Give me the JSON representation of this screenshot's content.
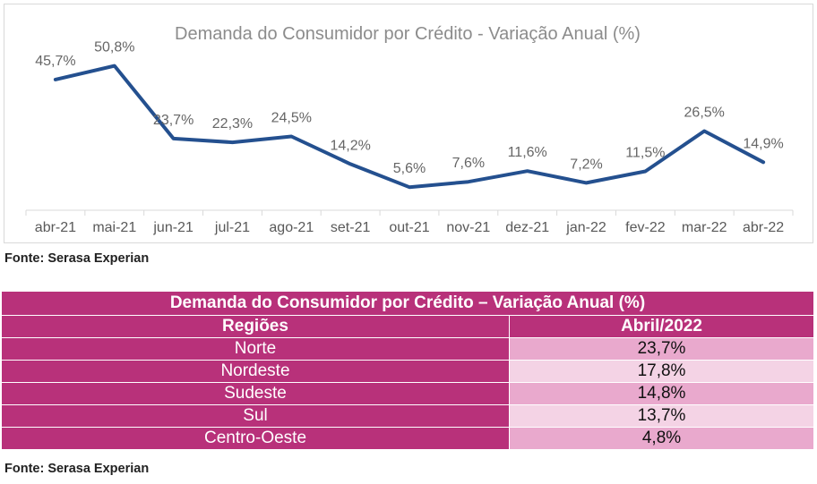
{
  "chart_data": {
    "type": "line",
    "title": "Demanda do Consumidor por Crédito - Variação Anual (%)",
    "categories": [
      "abr-21",
      "mai-21",
      "jun-21",
      "jul-21",
      "ago-21",
      "set-21",
      "out-21",
      "nov-21",
      "dez-21",
      "jan-22",
      "fev-22",
      "mar-22",
      "abr-22"
    ],
    "values": [
      45.7,
      50.8,
      23.7,
      22.3,
      24.5,
      14.2,
      5.6,
      7.6,
      11.6,
      7.2,
      11.5,
      26.5,
      14.9
    ],
    "data_labels": [
      "45,7%",
      "50,8%",
      "23,7%",
      "22,3%",
      "24,5%",
      "14,2%",
      "5,6%",
      "7,6%",
      "11,6%",
      "7,2%",
      "11,5%",
      "26,5%",
      "14,9%"
    ],
    "ylim": [
      0,
      55
    ],
    "grid": false,
    "line_color": "#24508f"
  },
  "chart_source": "Fonte: Serasa Experian",
  "table": {
    "title": "Demanda do Consumidor por Crédito – Variação Anual (%)",
    "headers": [
      "Regiões",
      "Abril/2022"
    ],
    "rows": [
      {
        "region": "Norte",
        "value": "23,7%"
      },
      {
        "region": "Nordeste",
        "value": "17,8%"
      },
      {
        "region": "Sudeste",
        "value": "14,8%"
      },
      {
        "region": "Sul",
        "value": "13,7%"
      },
      {
        "region": "Centro-Oeste",
        "value": "4,8%"
      }
    ],
    "colors": {
      "header": "#b8317a",
      "row_odd": "#e9a9cd",
      "row_even": "#f4d3e5"
    }
  },
  "table_source": "Fonte: Serasa Experian"
}
